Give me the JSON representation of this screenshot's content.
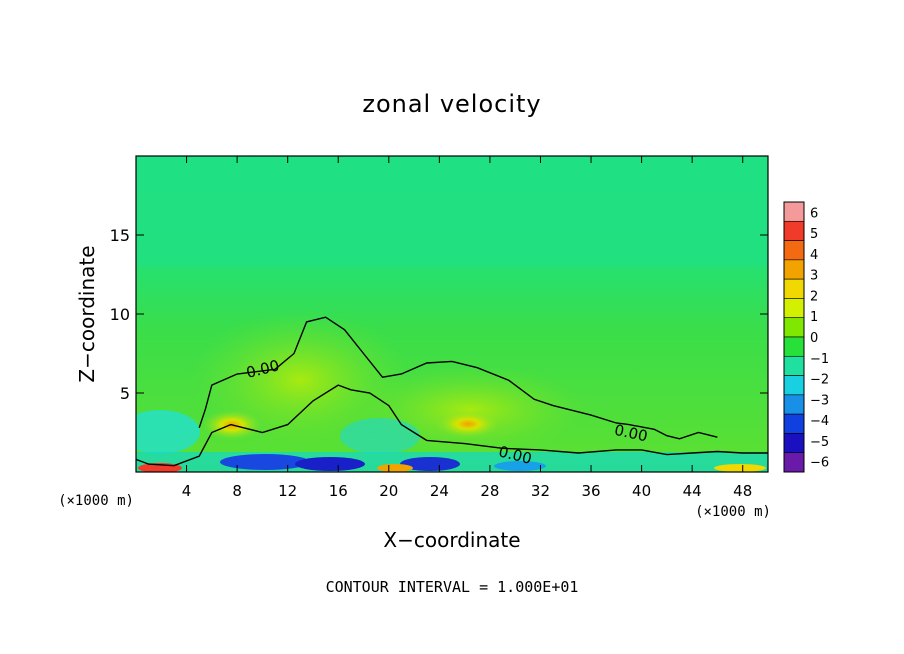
{
  "chart_data": {
    "type": "heatmap",
    "title": "zonal velocity",
    "xlabel": "X−coordinate",
    "ylabel": "Z−coordinate",
    "x_unit_left": "(×1000 m)",
    "x_unit_right": "(×1000 m)",
    "xlim": [
      0,
      50
    ],
    "ylim": [
      0,
      20
    ],
    "x_ticks": [
      4,
      8,
      12,
      16,
      20,
      24,
      28,
      32,
      36,
      40,
      44,
      48
    ],
    "y_ticks": [
      5,
      10,
      15
    ],
    "x_tick_labels": [
      "4",
      "8",
      "12",
      "16",
      "20",
      "24",
      "28",
      "32",
      "36",
      "40",
      "44",
      "48"
    ],
    "y_tick_labels": [
      "5",
      "10",
      "15"
    ],
    "colorbar": {
      "levels": [
        6,
        5,
        4,
        3,
        2,
        1,
        0,
        -1,
        -2,
        -3,
        -4,
        -5,
        -6
      ],
      "labels": [
        "6",
        "5",
        "4",
        "3",
        "2",
        "1",
        "0",
        "−1",
        "−2",
        "−3",
        "−4",
        "−5",
        "−6"
      ],
      "colors": [
        "#f49a9a",
        "#f03a2a",
        "#f46a10",
        "#f2a300",
        "#f0d800",
        "#d2f000",
        "#80e800",
        "#28e03a",
        "#20e0a0",
        "#18d0e0",
        "#1890e8",
        "#1040e0",
        "#1a10c0",
        "#6a1aa8"
      ]
    },
    "contours": [
      {
        "label": "0.00",
        "points": [
          [
            0,
            0.8
          ],
          [
            1,
            0.5
          ],
          [
            3,
            0.4
          ],
          [
            5,
            1
          ],
          [
            6,
            2.5
          ],
          [
            7.5,
            3
          ],
          [
            10,
            2.5
          ],
          [
            12,
            3
          ],
          [
            14,
            4.5
          ],
          [
            16,
            5.5
          ],
          [
            17,
            5.2
          ],
          [
            18.5,
            5
          ],
          [
            20,
            4.2
          ],
          [
            21,
            3
          ],
          [
            23,
            2
          ],
          [
            26,
            1.8
          ],
          [
            29,
            1.5
          ],
          [
            32,
            1.4
          ],
          [
            35,
            1.2
          ],
          [
            38,
            1.4
          ],
          [
            40,
            1.4
          ],
          [
            42,
            1.1
          ],
          [
            44,
            1.2
          ],
          [
            46,
            1.3
          ],
          [
            48,
            1.2
          ],
          [
            50,
            1.2
          ]
        ]
      },
      {
        "label": "0.00",
        "points": [
          [
            5,
            2.8
          ],
          [
            5.5,
            4
          ],
          [
            6,
            5.5
          ],
          [
            8,
            6.2
          ],
          [
            11,
            6.5
          ],
          [
            12.5,
            7.5
          ],
          [
            13.5,
            9.5
          ],
          [
            15,
            9.8
          ],
          [
            16.5,
            9
          ],
          [
            18,
            7.5
          ],
          [
            19.5,
            6
          ],
          [
            21,
            6.2
          ],
          [
            23,
            6.9
          ],
          [
            25,
            7
          ],
          [
            27,
            6.6
          ],
          [
            29.5,
            5.8
          ],
          [
            31.5,
            4.6
          ],
          [
            33,
            4.2
          ],
          [
            36,
            3.6
          ],
          [
            38,
            3.1
          ],
          [
            39,
            3
          ],
          [
            41,
            2.7
          ],
          [
            42,
            2.3
          ],
          [
            43,
            2.1
          ],
          [
            44.5,
            2.5
          ],
          [
            46,
            2.2
          ]
        ]
      }
    ],
    "contour_interval_label": "CONTOUR INTERVAL = 1.000E+01"
  }
}
